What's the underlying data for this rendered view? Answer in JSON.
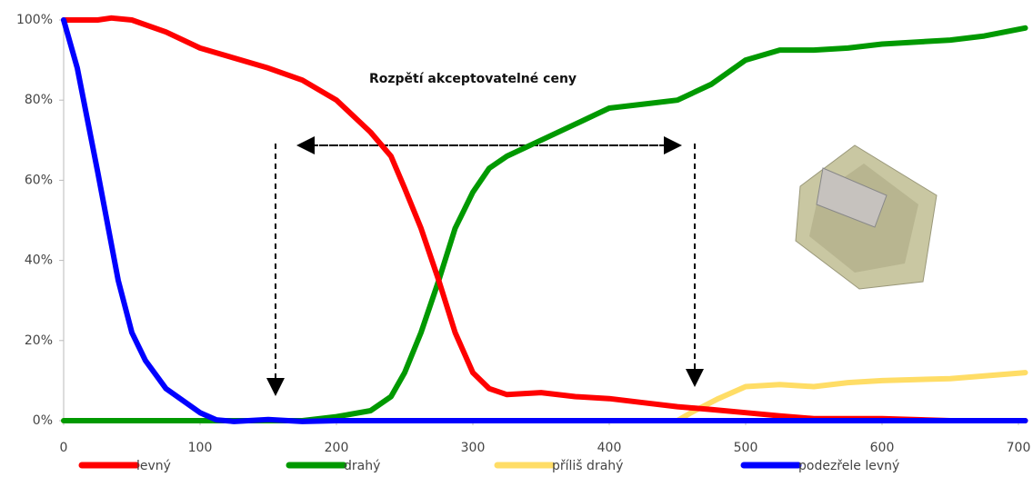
{
  "chart_data": {
    "type": "line",
    "annotation": "Rozpětí akceptovatelné ceny",
    "xlim": [
      0,
      705
    ],
    "xticks": [
      0,
      100,
      200,
      300,
      400,
      500,
      600,
      700
    ],
    "ylim": [
      0,
      100
    ],
    "yticks": [
      {
        "value": 0,
        "label": "0%"
      },
      {
        "value": 20,
        "label": "20%"
      },
      {
        "value": 40,
        "label": "40%"
      },
      {
        "value": 60,
        "label": "60%"
      },
      {
        "value": 80,
        "label": "80%"
      },
      {
        "value": 100,
        "label": "100%"
      }
    ],
    "series": [
      {
        "name": "levný",
        "color": "#ff0000",
        "x": [
          0,
          25,
          35,
          50,
          75,
          100,
          125,
          150,
          175,
          200,
          225,
          240,
          250,
          262,
          275,
          287,
          300,
          312,
          325,
          350,
          375,
          400,
          425,
          450,
          475,
          500,
          525,
          550,
          600,
          650,
          705
        ],
        "values": [
          100,
          100,
          100.5,
          100,
          97,
          93,
          90.5,
          88,
          85,
          80,
          72,
          66,
          58,
          48,
          35,
          22,
          12,
          8,
          6.5,
          7,
          6,
          5.5,
          4.5,
          3.5,
          2.8,
          2,
          1.2,
          0.5,
          0.5,
          0,
          0
        ]
      },
      {
        "name": "drahý",
        "color": "#009900",
        "x": [
          0,
          100,
          175,
          200,
          225,
          240,
          250,
          262,
          275,
          287,
          300,
          312,
          325,
          350,
          375,
          400,
          425,
          450,
          475,
          500,
          525,
          550,
          575,
          600,
          650,
          675,
          705
        ],
        "values": [
          0,
          0,
          0,
          1,
          2.5,
          6,
          12,
          22,
          35,
          48,
          57,
          63,
          66,
          70,
          74,
          78,
          79,
          80,
          84,
          90,
          92.5,
          92.5,
          93,
          94,
          95,
          96,
          98
        ]
      },
      {
        "name": "příliš drahý",
        "color": "#ffdd66",
        "x": [
          0,
          450,
          460,
          480,
          500,
          525,
          550,
          575,
          600,
          650,
          705
        ],
        "values": [
          0,
          0,
          2,
          5.5,
          8.5,
          9,
          8.5,
          9.5,
          10,
          10.5,
          12
        ]
      },
      {
        "name": "podezřele levný",
        "color": "#0000ff",
        "x": [
          0,
          10,
          25,
          40,
          50,
          60,
          75,
          100,
          112,
          125,
          150,
          175,
          200,
          705
        ],
        "values": [
          100,
          88,
          62,
          35,
          22,
          15,
          8,
          2,
          0.2,
          -0.2,
          0.3,
          -0.2,
          0,
          0
        ]
      }
    ]
  }
}
